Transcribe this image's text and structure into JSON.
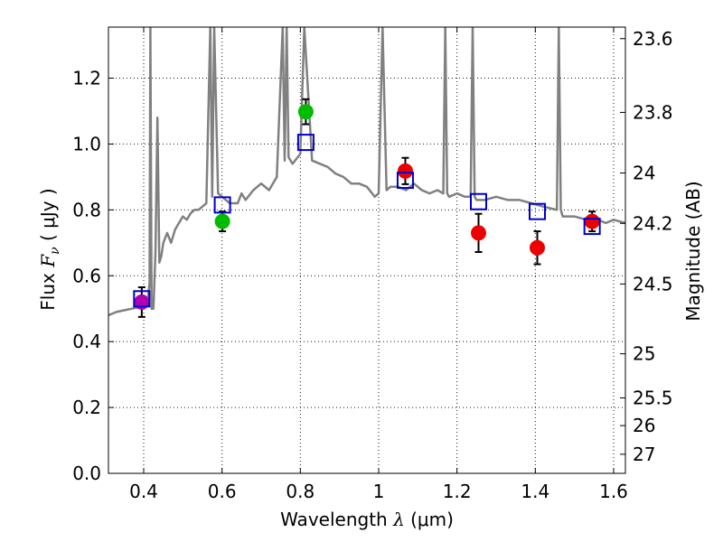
{
  "chart_data": {
    "type": "scatter",
    "xlabel": {
      "prefix": "Wavelength",
      "symbol": "λ",
      "units": "(μm)"
    },
    "ylabel": {
      "prefix": "Flux",
      "symbol": "F",
      "subscript": "ν",
      "units": "( μJy )"
    },
    "y2label": "Magnitude (AB)",
    "xlim": [
      0.31,
      1.63
    ],
    "ylim": [
      0.0,
      1.355
    ],
    "grid": true,
    "x_ticks": [
      0.4,
      0.6,
      0.8,
      1.0,
      1.2,
      1.4,
      1.6
    ],
    "x_tick_labels": [
      "0.4",
      "0.6",
      "0.8",
      "1",
      "1.2",
      "1.4",
      "1.6"
    ],
    "y_ticks": [
      0.0,
      0.2,
      0.4,
      0.6,
      0.8,
      1.0,
      1.2
    ],
    "y_tick_labels": [
      "0.0",
      "0.2",
      "0.4",
      "0.6",
      "0.8",
      "1.0",
      "1.2"
    ],
    "mag_ticks": [
      {
        "label": "23.6",
        "flux": 1.32
      },
      {
        "label": "23.8",
        "flux": 1.096
      },
      {
        "label": "24",
        "flux": 0.912
      },
      {
        "label": "24.2",
        "flux": 0.759
      },
      {
        "label": "24.5",
        "flux": 0.575
      },
      {
        "label": "25",
        "flux": 0.363
      },
      {
        "label": "25.5",
        "flux": 0.229
      },
      {
        "label": "26",
        "flux": 0.145
      },
      {
        "label": "27",
        "flux": 0.058
      }
    ],
    "series": [
      {
        "name": "model-spectrum",
        "kind": "line",
        "color": "#808080",
        "x": [
          0.31,
          0.33,
          0.35,
          0.37,
          0.39,
          0.41,
          0.415,
          0.417,
          0.42,
          0.425,
          0.43,
          0.435,
          0.44,
          0.445,
          0.45,
          0.46,
          0.47,
          0.48,
          0.49,
          0.5,
          0.51,
          0.52,
          0.53,
          0.54,
          0.55,
          0.56,
          0.57,
          0.575,
          0.58,
          0.59,
          0.6,
          0.62,
          0.64,
          0.65,
          0.66,
          0.68,
          0.7,
          0.72,
          0.74,
          0.755,
          0.76,
          0.765,
          0.77,
          0.78,
          0.8,
          0.81,
          0.83,
          0.85,
          0.87,
          0.89,
          0.91,
          0.93,
          0.95,
          0.97,
          0.99,
          1.0,
          1.01,
          1.02,
          1.03,
          1.05,
          1.07,
          1.09,
          1.11,
          1.13,
          1.15,
          1.165,
          1.17,
          1.175,
          1.18,
          1.2,
          1.22,
          1.235,
          1.24,
          1.245,
          1.25,
          1.27,
          1.3,
          1.33,
          1.36,
          1.39,
          1.42,
          1.455,
          1.46,
          1.465,
          1.47,
          1.5,
          1.53,
          1.56,
          1.58,
          1.6,
          1.63
        ],
        "y": [
          0.48,
          0.49,
          0.495,
          0.5,
          0.505,
          0.52,
          0.58,
          1.355,
          0.5,
          0.5,
          0.67,
          1.08,
          0.64,
          0.66,
          0.7,
          0.73,
          0.7,
          0.74,
          0.76,
          0.78,
          0.77,
          0.79,
          0.8,
          0.8,
          0.81,
          0.82,
          1.355,
          0.84,
          1.355,
          0.85,
          0.84,
          0.82,
          0.82,
          0.85,
          0.83,
          0.86,
          0.88,
          0.86,
          0.9,
          1.355,
          0.95,
          1.355,
          0.96,
          0.94,
          0.97,
          1.355,
          0.95,
          0.94,
          0.93,
          0.91,
          0.9,
          0.88,
          0.88,
          0.87,
          0.84,
          0.85,
          1.355,
          0.86,
          0.87,
          0.87,
          0.86,
          0.88,
          0.86,
          0.85,
          0.86,
          0.85,
          1.355,
          0.85,
          0.84,
          0.85,
          0.84,
          0.84,
          1.355,
          0.84,
          0.83,
          0.83,
          0.84,
          0.83,
          0.83,
          0.82,
          0.81,
          0.8,
          1.355,
          0.8,
          0.78,
          0.78,
          0.77,
          0.77,
          0.76,
          0.77,
          0.76
        ]
      },
      {
        "name": "model-photometry",
        "kind": "open-square",
        "color": "#0000cc",
        "points": [
          {
            "x": 0.395,
            "y": 0.53
          },
          {
            "x": 0.601,
            "y": 0.815
          },
          {
            "x": 0.814,
            "y": 1.005
          },
          {
            "x": 1.068,
            "y": 0.89
          },
          {
            "x": 1.255,
            "y": 0.825
          },
          {
            "x": 1.405,
            "y": 0.795
          },
          {
            "x": 1.545,
            "y": 0.75
          }
        ]
      },
      {
        "name": "observed-photometry",
        "kind": "filled-circle-with-error",
        "points": [
          {
            "x": 0.395,
            "y": 0.52,
            "err": 0.045,
            "color": "#b000b0"
          },
          {
            "x": 0.601,
            "y": 0.765,
            "err": 0.03,
            "color": "#00bb00"
          },
          {
            "x": 0.814,
            "y": 1.098,
            "err": 0.038,
            "color": "#00bb00"
          },
          {
            "x": 1.068,
            "y": 0.918,
            "err": 0.04,
            "color": "#ee0000"
          },
          {
            "x": 1.255,
            "y": 0.73,
            "err": 0.058,
            "color": "#ee0000"
          },
          {
            "x": 1.405,
            "y": 0.685,
            "err": 0.05,
            "color": "#ee0000"
          },
          {
            "x": 1.545,
            "y": 0.765,
            "err": 0.03,
            "color": "#ee0000"
          }
        ]
      }
    ]
  }
}
